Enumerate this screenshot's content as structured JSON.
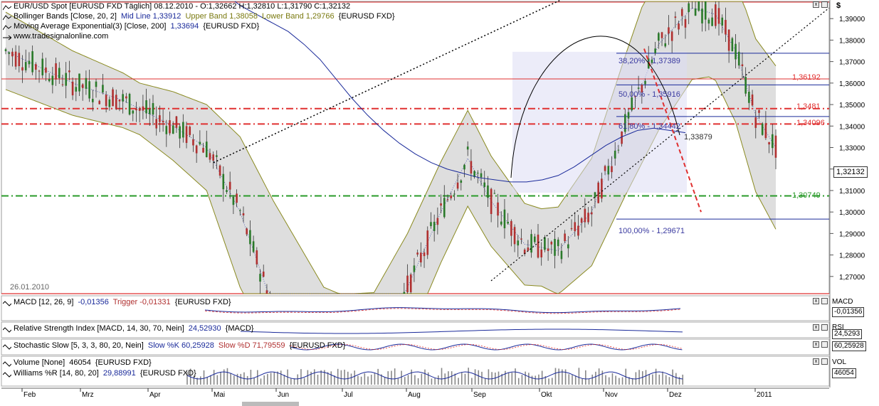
{
  "chart_data": {
    "type": "candlestick",
    "symbol": "EUR/USD Spot [EURUSD FXD]",
    "period": "Täglich",
    "header": "EUR/USD Spot [EURUSD FXD  Täglich] 08.12.2010 - O:1,32662 H:1,32810 L:1,31790 C:1,32132",
    "bollinger_label": "Bollinger Bands [Close, 20, 2]",
    "bollinger_mid": "Mid Line 1,33912",
    "bollinger_upper": "Upper Band 1,38058",
    "bollinger_lower": "Lower Band 1,29766",
    "bollinger_symbol": "{EURUSD FXD}",
    "ema_label": "Moving Average Exponential(3) [Close, 200]",
    "ema_value": "1,33694",
    "ema_symbol": "{EURUSD FXD}",
    "watermark": "www.tradesignalonline.com",
    "start_date_label": "26.01.2010",
    "ylim": [
      1.262,
      1.398
    ],
    "y_ticks": [
      "1,39000",
      "1,38000",
      "1,37000",
      "1,36000",
      "1,35000",
      "1,34000",
      "1,33000",
      "1,32000",
      "1,31000",
      "1,30000",
      "1,29000",
      "1,28000",
      "1,27000"
    ],
    "y_tick_values": [
      1.39,
      1.38,
      1.37,
      1.36,
      1.35,
      1.34,
      1.33,
      1.32,
      1.31,
      1.3,
      1.29,
      1.28,
      1.27
    ],
    "x_ticks": [
      "Feb",
      "Mrz",
      "Apr",
      "Mai",
      "Jun",
      "Jul",
      "Aug",
      "Sep",
      "Okt",
      "Nov",
      "Dez",
      "2011"
    ],
    "price_line_levels": [
      {
        "label": "1,36192",
        "value": 1.36192,
        "color": "#e03030",
        "style": "solid"
      },
      {
        "label": "1,3481",
        "value": 1.3481,
        "color": "#e03030",
        "style": "dashdot"
      },
      {
        "label": "1,34096",
        "value": 1.34096,
        "color": "#e03030",
        "style": "dashdot"
      },
      {
        "label": "1,30749",
        "value": 1.30749,
        "color": "#2a9a2a",
        "style": "dashdot"
      }
    ],
    "fib_levels": [
      {
        "label": "38,20% - 1,37389",
        "value": 1.37389
      },
      {
        "label": "50,00% - 1,35916",
        "value": 1.35916
      },
      {
        "label": "61,80% - 1,34442",
        "value": 1.34442
      },
      {
        "label": "100,00% - 1,29671",
        "value": 1.29671
      }
    ],
    "last_close_badge": "1,32132",
    "annotation_value": "1,33879",
    "series": [
      {
        "name": "EMA 200",
        "values": [
          1.396,
          1.392,
          1.388,
          1.384,
          1.378,
          1.371,
          1.362,
          1.353,
          1.345,
          1.338,
          1.332,
          1.327,
          1.323,
          1.32,
          1.318,
          1.316,
          1.315,
          1.314,
          1.314,
          1.315,
          1.317,
          1.321,
          1.326,
          1.331,
          1.335,
          1.338,
          1.339,
          1.338,
          1.3369
        ]
      }
    ]
  },
  "subpanels": [
    {
      "id": "macd",
      "label": "MACD [12, 26, 9]",
      "value": "-0,01356",
      "trigger": "Trigger -0,01331",
      "symbol": "{EURUSD FXD}",
      "axis_name": "MACD",
      "axis_value": "-0,01356"
    },
    {
      "id": "rsi",
      "label": "Relative Strength Index [MACD, 14, 30, 70, Nein]",
      "value": "24,52930",
      "symbol": "{MACD}",
      "axis_name": "RSI",
      "axis_value": "24,5293"
    },
    {
      "id": "stoch",
      "label": "Stochastic Slow [5, 3, 3, 80, 20, Nein]",
      "k_label": "Slow %K 60,25928",
      "d_label": "Slow %D 71,79559",
      "symbol": "{EURUSD FXD}",
      "axis_name": "",
      "axis_value": "60,25928"
    },
    {
      "id": "vol",
      "label": "Volume [None]",
      "value": "46054",
      "symbol": "{EURUSD FXD}",
      "axis_name": "VOL",
      "axis_value": "46054"
    },
    {
      "id": "will",
      "label": "Williams %R [14, 80, 20]",
      "value": "29,88991",
      "symbol": "{EURUSD FXD}"
    }
  ],
  "axis_symbol": "$",
  "colors": {
    "red": "#e03030",
    "green": "#2a9a2a",
    "blue": "#1a2a9a",
    "band_fill": "#d8d8d8",
    "fib_fill": "#dcdcf4",
    "candle_up": "#2a7a2a",
    "candle_down": "#b03030"
  }
}
